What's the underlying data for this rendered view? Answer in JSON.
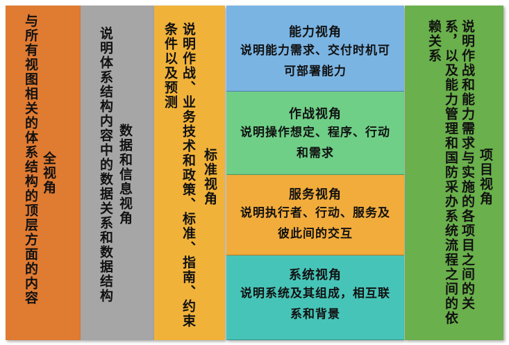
{
  "columns": {
    "all": {
      "title": "全视角",
      "desc": "与所有视图相关的体系结构的顶层方面的内容",
      "color": "#e07b32"
    },
    "data": {
      "title": "数据和信息视角",
      "desc": "说明体系结构内容中的数据关系和数据结构",
      "color": "#a6a6a6"
    },
    "standard": {
      "title": "标准视角",
      "desc": "说明作战、业务技术和政策、标准、指南、约束条件以及预测",
      "color": "#f1b23a"
    },
    "project": {
      "title": "项目视角",
      "desc": "说明作战和能力需求与实施的各项目之间的关系，以及能力管理和国防采办系统流程之间的依赖关系",
      "color": "#6ab04c"
    }
  },
  "rows": [
    {
      "title": "能力视角",
      "desc": "说明能力需求、交付时机可可部署能力",
      "color": "#7ab4e3"
    },
    {
      "title": "作战视角",
      "desc": "说明操作想定、程序、行动和需求",
      "color": "#6fcf87"
    },
    {
      "title": "服务视角",
      "desc": "说明执行者、行动、服务及彼此间的交互",
      "color": "#f2ac3c"
    },
    {
      "title": "系统视角",
      "desc": "说明系统及其组成，相互联系和背景",
      "color": "#47c4b8"
    }
  ]
}
